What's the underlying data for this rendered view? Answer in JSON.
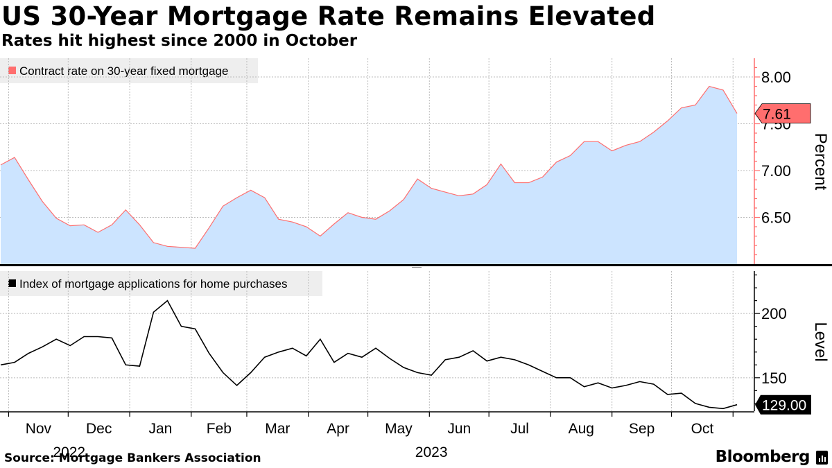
{
  "title": "US 30-Year Mortgage Rate Remains Elevated",
  "subtitle": "Rates hit highest since 2000 in October",
  "source": "Source: Mortgage Bankers Association",
  "brand": "Bloomberg",
  "colors": {
    "rate_fill": "#cce4ff",
    "rate_line": "#ff6e6e",
    "rate_badge": "#ff6e6e",
    "index_line": "#000000",
    "grid": "#bbbbbb",
    "axis": "#ff6e6e",
    "legend_bg": "#eeeeee"
  },
  "x_axis": {
    "months": [
      "Nov",
      "Dec",
      "Jan",
      "Feb",
      "Mar",
      "Apr",
      "May",
      "Jun",
      "Jul",
      "Aug",
      "Sep",
      "Oct"
    ],
    "years": [
      "2022",
      "2023"
    ]
  },
  "chart_data": [
    {
      "type": "area",
      "title": "US 30-Year Mortgage Rate Remains Elevated",
      "legend": "Contract rate on 30-year fixed mortgage",
      "ylabel": "Percent",
      "ylim": [
        6.0,
        8.2
      ],
      "yticks": [
        "6.50",
        "7.00",
        "7.50",
        "8.00"
      ],
      "last_value_label": "7.61",
      "x_start": "2022-10-28",
      "x_step_days": 7,
      "values": [
        7.06,
        7.14,
        6.9,
        6.67,
        6.49,
        6.41,
        6.42,
        6.34,
        6.42,
        6.58,
        6.42,
        6.23,
        6.19,
        6.18,
        6.17,
        6.39,
        6.62,
        6.71,
        6.79,
        6.71,
        6.48,
        6.45,
        6.4,
        6.3,
        6.43,
        6.55,
        6.5,
        6.48,
        6.57,
        6.69,
        6.91,
        6.81,
        6.77,
        6.73,
        6.75,
        6.85,
        7.07,
        6.87,
        6.87,
        6.93,
        7.09,
        7.16,
        7.31,
        7.31,
        7.21,
        7.27,
        7.31,
        7.41,
        7.53,
        7.67,
        7.7,
        7.9,
        7.86,
        7.61
      ]
    },
    {
      "type": "line",
      "legend": "Index of mortgage applications for home purchases",
      "ylabel": "Level",
      "ylim": [
        124,
        233
      ],
      "yticks": [
        "150",
        "200"
      ],
      "last_value_label": "129.00",
      "x_start": "2022-10-28",
      "x_step_days": 7,
      "values": [
        160,
        162,
        169,
        174,
        180,
        175,
        182,
        182,
        181,
        160,
        159,
        201,
        210,
        190,
        188,
        169,
        154,
        144,
        154,
        166,
        170,
        173,
        167,
        180,
        162,
        169,
        166,
        173,
        165,
        158,
        154,
        152,
        164,
        166,
        171,
        163,
        166,
        164,
        160,
        155,
        150,
        150,
        143,
        146,
        142,
        144,
        147,
        145,
        137,
        138,
        130,
        127,
        126,
        129
      ]
    }
  ]
}
